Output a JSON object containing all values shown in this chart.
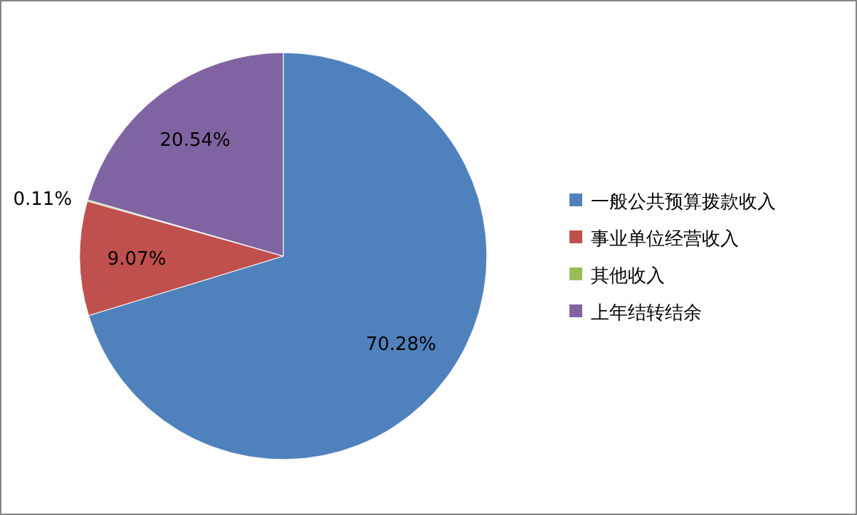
{
  "chart_data": {
    "type": "pie",
    "categories": [
      "一般公共预算拨款收入",
      "事业单位经营收入",
      "其他收入",
      "上年结转结余"
    ],
    "values": [
      70.28,
      9.07,
      0.11,
      20.54
    ],
    "colors": [
      "#4f81bd",
      "#c0504d",
      "#9bbb59",
      "#8064a2"
    ],
    "value_labels": [
      "70.28%",
      "9.07%",
      "0.11%",
      "20.54%"
    ],
    "legend": "right"
  }
}
